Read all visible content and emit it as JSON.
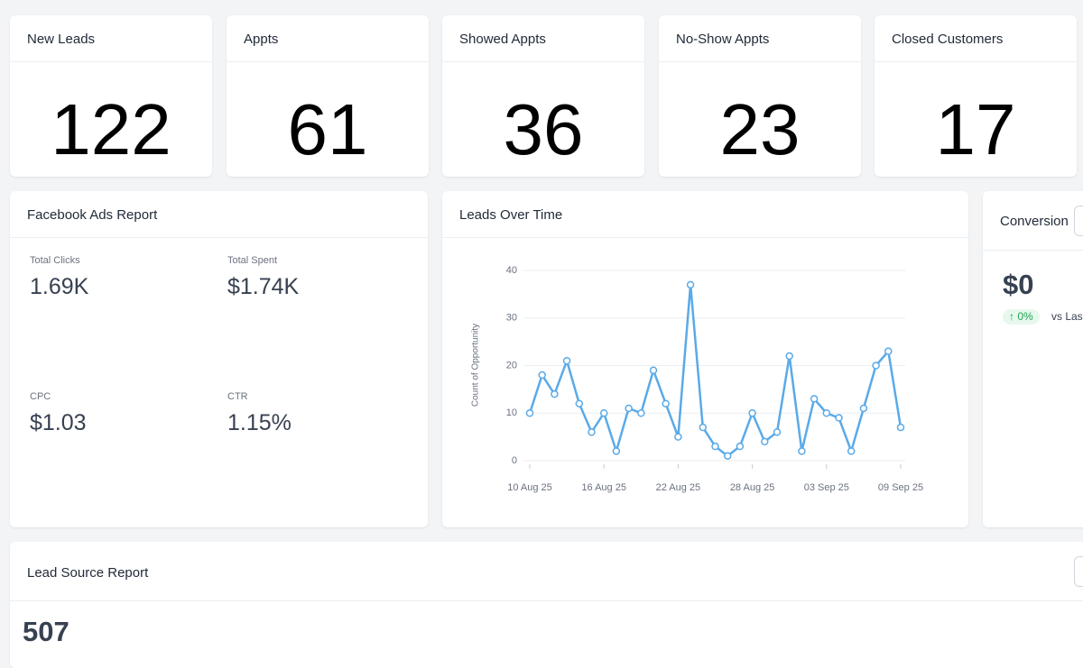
{
  "stat_cards": [
    {
      "title": "New Leads",
      "value": "122"
    },
    {
      "title": "Appts",
      "value": "61"
    },
    {
      "title": "Showed Appts",
      "value": "36"
    },
    {
      "title": "No-Show Appts",
      "value": "23"
    },
    {
      "title": "Closed Customers",
      "value": "17"
    }
  ],
  "facebook_report": {
    "title": "Facebook Ads Report",
    "metrics": [
      {
        "label": "Total Clicks",
        "value": "1.69K"
      },
      {
        "label": "Total Spent",
        "value": "$1.74K"
      },
      {
        "label": "CPC",
        "value": "$1.03"
      },
      {
        "label": "CTR",
        "value": "1.15%"
      }
    ]
  },
  "leads_over_time": {
    "title": "Leads Over Time",
    "chart_data": {
      "type": "line",
      "y_label": "Count of Opportunity",
      "x": [
        "10 Aug 25",
        null,
        null,
        null,
        null,
        null,
        "16 Aug 25",
        null,
        null,
        null,
        null,
        null,
        "22 Aug 25",
        null,
        null,
        null,
        null,
        null,
        "28 Aug 25",
        null,
        null,
        null,
        null,
        null,
        "03 Sep 25",
        null,
        null,
        null,
        null,
        null,
        "09 Sep 25"
      ],
      "series": [
        {
          "color": "#5aaae8",
          "values": [
            10,
            18,
            14,
            21,
            12,
            6,
            10,
            2,
            11,
            10,
            19,
            12,
            5,
            37,
            7,
            3,
            1,
            3,
            10,
            4,
            6,
            22,
            2,
            13,
            10,
            9,
            2,
            11,
            20,
            23,
            7
          ]
        }
      ],
      "ylim": [
        0,
        40
      ],
      "yticks": [
        0,
        10,
        20,
        30,
        40
      ],
      "grid": true
    }
  },
  "conversion": {
    "title": "Conversion",
    "value": "$0",
    "change": "0%",
    "compare": "vs Las"
  },
  "lead_source": {
    "title": "Lead Source Report",
    "value": "507"
  }
}
